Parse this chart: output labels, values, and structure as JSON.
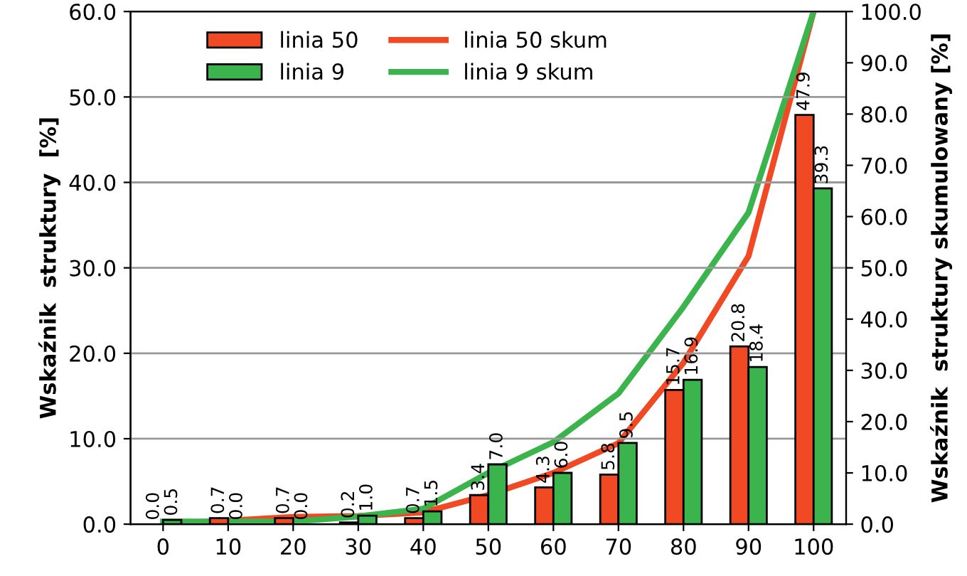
{
  "chart_data": {
    "type": "bar",
    "ylabel": "Wskaźnik  struktury  [%]",
    "y2label": "Wskaźnik  struktury skumulowany [%]",
    "categories": [
      "0",
      "10",
      "20",
      "30",
      "40",
      "50",
      "60",
      "70",
      "80",
      "90",
      "100"
    ],
    "series": [
      {
        "name": "linia 50",
        "color": "#f04923",
        "values": [
          0.0,
          0.7,
          0.7,
          0.2,
          0.7,
          3.4,
          4.3,
          5.8,
          15.7,
          20.8,
          47.9
        ],
        "value_labels": [
          "0.0",
          "0.7",
          "0.7",
          "0.2",
          "0.7",
          "3.4",
          "4.3",
          "5.8",
          "15.7",
          "20.8",
          "47.9"
        ]
      },
      {
        "name": "linia 9",
        "color": "#3cb44e",
        "values": [
          0.5,
          0.0,
          0.0,
          1.0,
          1.5,
          7.0,
          6.0,
          9.5,
          16.9,
          18.4,
          39.3
        ],
        "value_labels": [
          "0.5",
          "0.0",
          "0.0",
          "1.0",
          "1.5",
          "7.0",
          "6.0",
          "9.5",
          "16.9",
          "18.4",
          "39.3"
        ]
      },
      {
        "name": "linia 50 skum",
        "type": "line",
        "axis": "y2",
        "color": "#f04923",
        "values": [
          0.0,
          0.7,
          1.4,
          1.6,
          2.3,
          5.7,
          10.0,
          15.8,
          31.5,
          52.3,
          100.0
        ]
      },
      {
        "name": "linia 9 skum",
        "type": "line",
        "axis": "y2",
        "color": "#3cb44e",
        "values": [
          0.5,
          0.5,
          0.5,
          1.5,
          3.0,
          10.0,
          16.0,
          25.5,
          42.4,
          60.8,
          100.0
        ]
      }
    ],
    "ylim": [
      0,
      60
    ],
    "yticks": [
      {
        "value": 0,
        "label": "0.0"
      },
      {
        "value": 10,
        "label": "10.0"
      },
      {
        "value": 20,
        "label": "20.0"
      },
      {
        "value": 30,
        "label": "30.0"
      },
      {
        "value": 40,
        "label": "40.0"
      },
      {
        "value": 50,
        "label": "50.0"
      },
      {
        "value": 60,
        "label": "60.0"
      }
    ],
    "y2lim": [
      0,
      100
    ],
    "y2ticks": [
      {
        "value": 0,
        "label": "0.0"
      },
      {
        "value": 10,
        "label": "10.0"
      },
      {
        "value": 20,
        "label": "20.0"
      },
      {
        "value": 30,
        "label": "30.0"
      },
      {
        "value": 40,
        "label": "40.0"
      },
      {
        "value": 50,
        "label": "50.0"
      },
      {
        "value": 60,
        "label": "60.0"
      },
      {
        "value": 70,
        "label": "70.0"
      },
      {
        "value": 80,
        "label": "80.0"
      },
      {
        "value": 90,
        "label": "90.0"
      },
      {
        "value": 100,
        "label": "100.0"
      }
    ],
    "grid": "y",
    "legend": "top left",
    "marker": "none",
    "line_style": "solid"
  }
}
